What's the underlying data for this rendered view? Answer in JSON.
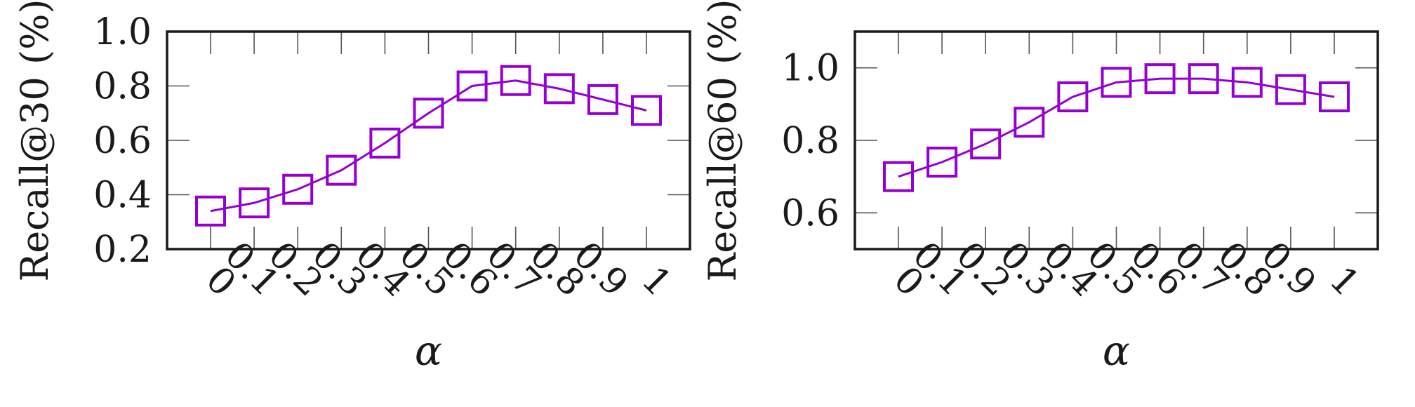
{
  "chart_data": [
    {
      "type": "line",
      "title": "",
      "xlabel": "α",
      "ylabel": "Recall@30 (%)",
      "x_tick_labels": [
        "0",
        "0.1",
        "0.2",
        "0.3",
        "0.4",
        "0.5",
        "0.6",
        "0.7",
        "0.8",
        "0.9",
        "1"
      ],
      "y_ticks": [
        0.2,
        0.4,
        0.6,
        0.8,
        1.0
      ],
      "y_tick_labels": [
        "0.2",
        "0.4",
        "0.6",
        "0.8",
        "1.0"
      ],
      "xlim": [
        0,
        1
      ],
      "ylim": [
        0.2,
        1.0
      ],
      "grid": false,
      "marker": "square",
      "series_color": "#9400d3",
      "series": [
        {
          "x": [
            0,
            0.1,
            0.2,
            0.3,
            0.4,
            0.5,
            0.6,
            0.7,
            0.8,
            0.9,
            1
          ],
          "values": [
            0.34,
            0.37,
            0.42,
            0.49,
            0.59,
            0.7,
            0.8,
            0.82,
            0.79,
            0.75,
            0.71
          ]
        }
      ]
    },
    {
      "type": "line",
      "title": "",
      "xlabel": "α",
      "ylabel": "Recall@60 (%)",
      "x_tick_labels": [
        "0",
        "0.1",
        "0.2",
        "0.3",
        "0.4",
        "0.5",
        "0.6",
        "0.7",
        "0.8",
        "0.9",
        "1"
      ],
      "y_ticks": [
        0.6,
        0.8,
        1.0
      ],
      "y_tick_labels": [
        "0.6",
        "0.8",
        "1.0"
      ],
      "xlim": [
        0,
        1
      ],
      "ylim": [
        0.5,
        1.1
      ],
      "grid": false,
      "marker": "square",
      "series_color": "#9400d3",
      "series": [
        {
          "x": [
            0,
            0.1,
            0.2,
            0.3,
            0.4,
            0.5,
            0.6,
            0.7,
            0.8,
            0.9,
            1
          ],
          "values": [
            0.7,
            0.74,
            0.79,
            0.85,
            0.92,
            0.96,
            0.97,
            0.97,
            0.96,
            0.94,
            0.92
          ]
        }
      ]
    }
  ]
}
